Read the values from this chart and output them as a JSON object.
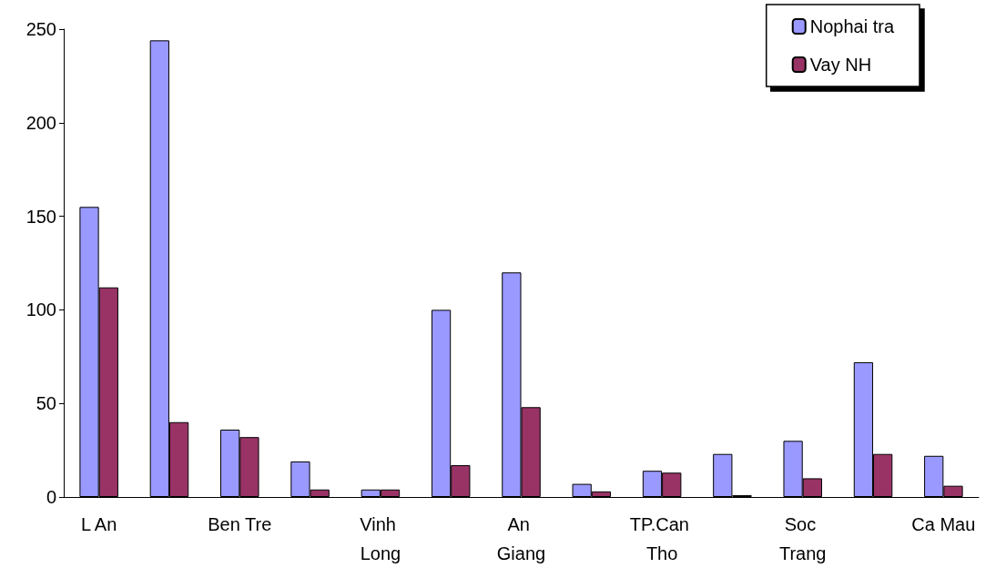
{
  "chart_data": {
    "type": "bar",
    "categories": [
      "L An",
      null,
      "Ben Tre",
      null,
      "Vinh Long",
      null,
      "An Giang",
      null,
      "TP.Can Tho",
      null,
      "Soc Trang",
      null,
      "Ca Mau"
    ],
    "series": [
      {
        "name": "Nophai tra",
        "color": "#9999ff",
        "values": [
          155,
          244,
          36,
          19,
          4,
          100,
          120,
          7,
          14,
          23,
          30,
          72,
          22
        ]
      },
      {
        "name": "Vay NH",
        "color": "#993366",
        "values": [
          112,
          40,
          32,
          4,
          4,
          17,
          48,
          3,
          13,
          1,
          10,
          23,
          6
        ]
      }
    ],
    "ylim": [
      0,
      250
    ],
    "yticks": [
      0,
      50,
      100,
      150,
      200,
      250
    ],
    "grid": false,
    "legend": "top right"
  }
}
